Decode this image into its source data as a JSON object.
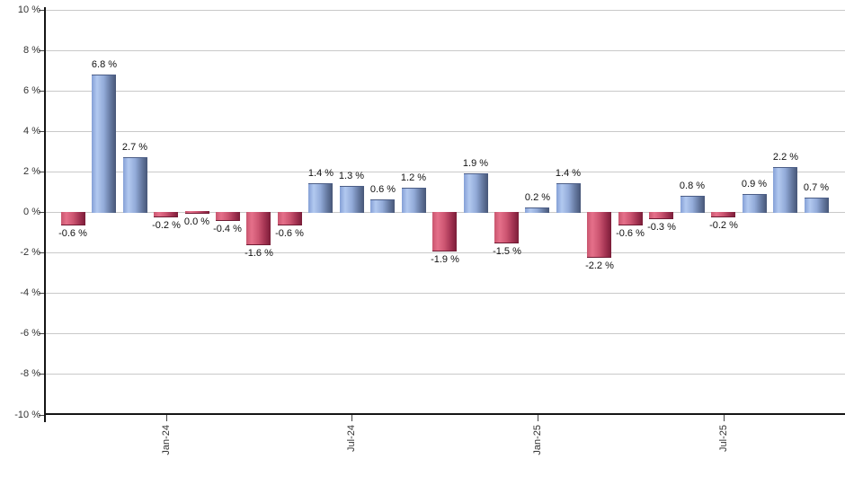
{
  "chart_data": {
    "type": "bar",
    "title": "",
    "xlabel": "",
    "ylabel": "",
    "ylim": [
      -10,
      10
    ],
    "grid": true,
    "legend": "none",
    "y_ticks": [
      {
        "value": 10,
        "label": "10 %"
      },
      {
        "value": 8,
        "label": "8 %"
      },
      {
        "value": 6,
        "label": "6 %"
      },
      {
        "value": 4,
        "label": "4 %"
      },
      {
        "value": 2,
        "label": "2 %"
      },
      {
        "value": 0,
        "label": "0 %"
      },
      {
        "value": -2,
        "label": "-2 %"
      },
      {
        "value": -4,
        "label": "-4 %"
      },
      {
        "value": -6,
        "label": "-6 %"
      },
      {
        "value": -8,
        "label": "-8 %"
      },
      {
        "value": -10,
        "label": "-10 %"
      }
    ],
    "x_ticks": [
      {
        "bar_index": 3,
        "label": "Jan-24"
      },
      {
        "bar_index": 9,
        "label": "Jul-24"
      },
      {
        "bar_index": 15,
        "label": "Jan-25"
      },
      {
        "bar_index": 21,
        "label": "Jul-25"
      }
    ],
    "bars": [
      {
        "value": -0.6,
        "label": "-0.6 %"
      },
      {
        "value": 6.8,
        "label": "6.8 %"
      },
      {
        "value": 2.7,
        "label": "2.7 %"
      },
      {
        "value": -0.2,
        "label": "-0.2 %"
      },
      {
        "value": 0.0,
        "label": "0.0 %"
      },
      {
        "value": -0.4,
        "label": "-0.4 %"
      },
      {
        "value": -1.6,
        "label": "-1.6 %"
      },
      {
        "value": -0.6,
        "label": "-0.6 %"
      },
      {
        "value": 1.4,
        "label": "1.4 %"
      },
      {
        "value": 1.3,
        "label": "1.3 %"
      },
      {
        "value": 0.6,
        "label": "0.6 %"
      },
      {
        "value": 1.2,
        "label": "1.2 %"
      },
      {
        "value": -1.9,
        "label": "-1.9 %"
      },
      {
        "value": 1.9,
        "label": "1.9 %"
      },
      {
        "value": -1.5,
        "label": "-1.5 %"
      },
      {
        "value": 0.2,
        "label": "0.2 %"
      },
      {
        "value": 1.4,
        "label": "1.4 %"
      },
      {
        "value": -2.2,
        "label": "-2.2 %"
      },
      {
        "value": -0.6,
        "label": "-0.6 %"
      },
      {
        "value": -0.3,
        "label": "-0.3 %"
      },
      {
        "value": 0.8,
        "label": "0.8 %"
      },
      {
        "value": -0.2,
        "label": "-0.2 %"
      },
      {
        "value": 0.9,
        "label": "0.9 %"
      },
      {
        "value": 2.2,
        "label": "2.2 %"
      },
      {
        "value": 0.7,
        "label": "0.7 %"
      }
    ],
    "colors": {
      "positive_bar": "#8fabdc",
      "negative_bar": "#c4405f",
      "gridline": "#c9c9c9",
      "axis": "#151515",
      "value_label_text": "#111111",
      "tick_label_text": "#333333"
    }
  }
}
